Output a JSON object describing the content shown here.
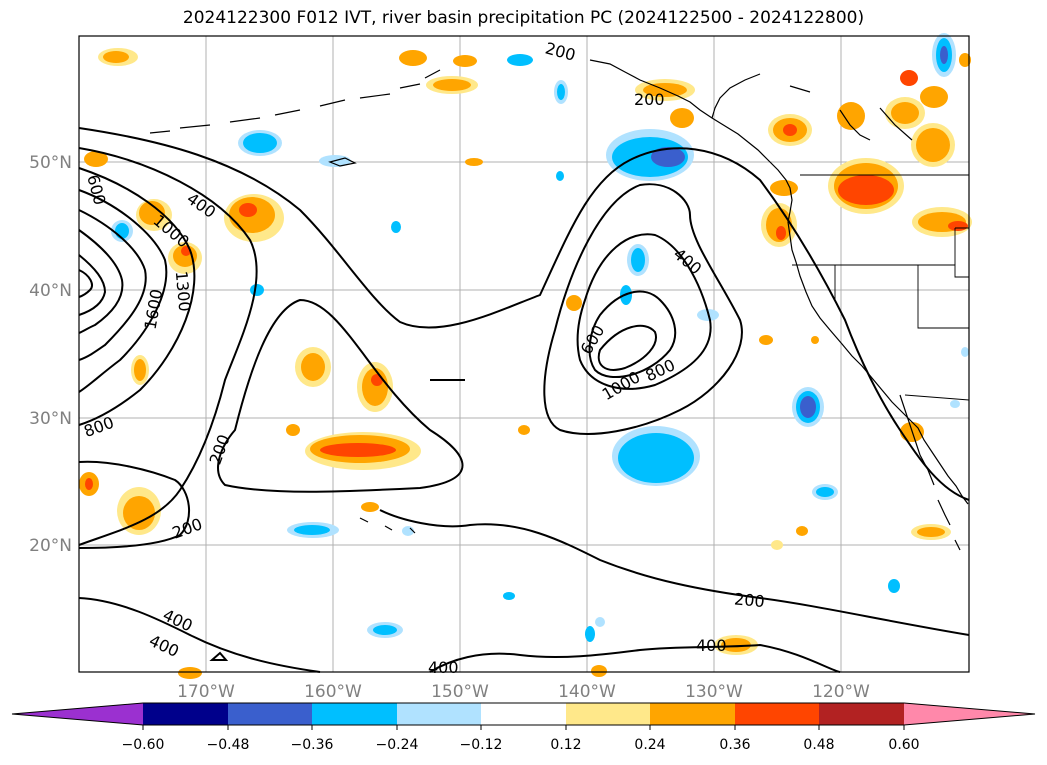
{
  "title": "2024122300 F012 IVT, river basin precipitation PC (2024122500 - 2024122800)",
  "map": {
    "lat_labels": [
      "50°N",
      "40°N",
      "30°N",
      "20°N"
    ],
    "lon_labels": [
      "170°W",
      "160°W",
      "150°W",
      "140°W",
      "130°W",
      "120°W"
    ],
    "contour_labels": {
      "c600_left": "600",
      "c400_left": "400",
      "c1000_left": "1000",
      "c1300": "1300",
      "c1600": "1600",
      "c800_left": "800",
      "c200_mid": "200",
      "c200_sw": "200",
      "c400_sw1": "400",
      "c400_sw2": "400",
      "c400_bot": "400",
      "c200_top1": "200",
      "c200_top2": "200",
      "c400_east": "400",
      "c600_east": "600",
      "c1000_east": "1000",
      "c800_east": "800",
      "c200_south": "200",
      "c400_south": "400"
    }
  },
  "colorbar": {
    "ticks": [
      "−0.60",
      "−0.48",
      "−0.36",
      "−0.24",
      "−0.12",
      "0.12",
      "0.24",
      "0.36",
      "0.48",
      "0.60"
    ],
    "colors": [
      "#9b30d0",
      "#00008b",
      "#3a5fcd",
      "#00bfff",
      "#b0e2ff",
      "#ffffff",
      "#ffe88a",
      "#ffa500",
      "#ff4500",
      "#b22222",
      "#ff88aa"
    ]
  }
}
